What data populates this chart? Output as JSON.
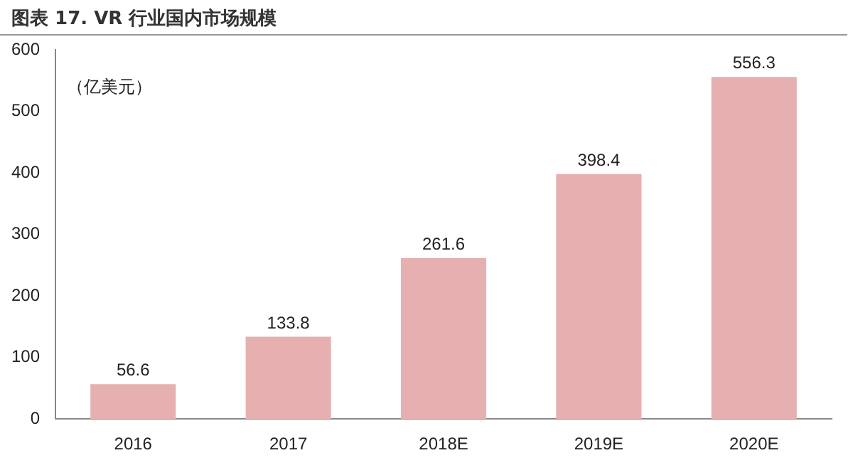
{
  "chart_data": {
    "type": "bar",
    "title": "图表 17. VR 行业国内市场规模",
    "ylabel": "（亿美元）",
    "categories": [
      "2016",
      "2017",
      "2018E",
      "2019E",
      "2020E"
    ],
    "values": [
      56.6,
      133.8,
      261.6,
      398.4,
      556.3
    ],
    "color": "#e6b0b0",
    "ylim": [
      0,
      600
    ],
    "yticks": [
      0,
      100,
      200,
      300,
      400,
      500,
      600
    ],
    "grid": false,
    "legend": false,
    "data_labels": true
  }
}
